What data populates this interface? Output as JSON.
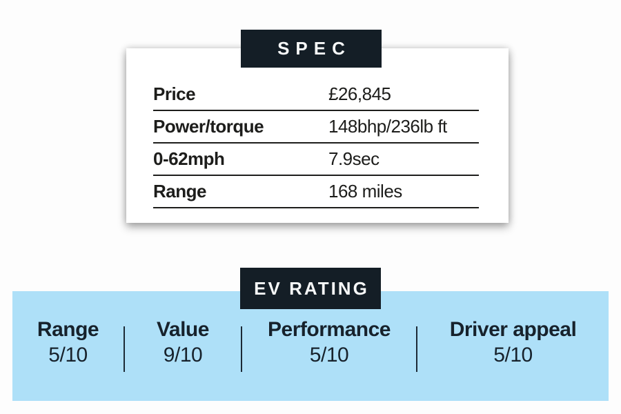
{
  "spec_card": {
    "header": "SPEC",
    "rows": [
      {
        "label": "Price",
        "value": "£26,845"
      },
      {
        "label": "Power/torque",
        "value": "148bhp/236lb ft"
      },
      {
        "label": "0-62mph",
        "value": "7.9sec"
      },
      {
        "label": "Range",
        "value": "168 miles"
      }
    ]
  },
  "ev_rating": {
    "header": "EV RATING",
    "items": [
      {
        "label": "Range",
        "value": "5/10"
      },
      {
        "label": "Value",
        "value": "9/10"
      },
      {
        "label": "Performance",
        "value": "5/10"
      },
      {
        "label": "Driver appeal",
        "value": "5/10"
      }
    ]
  },
  "colors": {
    "header_bg": "#141e26",
    "header_text": "#f6f8f8",
    "band_bg": "#aee0f8",
    "rating_text": "#17222c",
    "spec_text": "#1d1d1b",
    "rule_color": "#1d1d1b",
    "divider_color": "#1c2935",
    "page_bg": "#fdfdfd"
  }
}
